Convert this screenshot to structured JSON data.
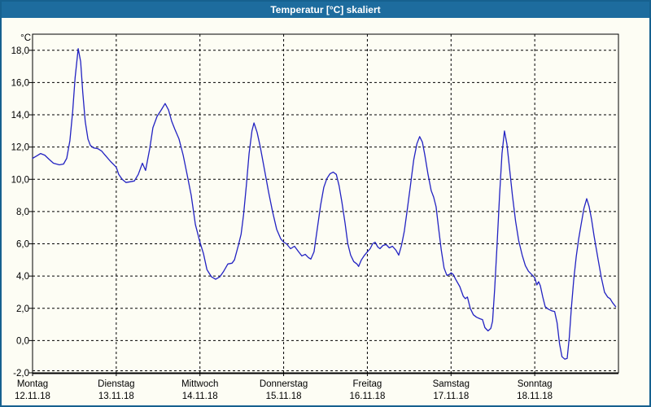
{
  "window": {
    "title": "Temperatur [°C] skaliert"
  },
  "colors": {
    "titlebar_bg": "#1d6c9e",
    "titlebar_text": "#ffffff",
    "window_border": "#16618f",
    "page_bg": "#fdfdf4",
    "plot_border": "#000000",
    "gridline": "#000000",
    "axis_text": "#000000",
    "series_line": "#2222c2"
  },
  "chart_data": {
    "type": "line",
    "title": "Temperatur [°C] skaliert",
    "ylabel": "°C",
    "grid": "dashed",
    "legend_position": "none",
    "y_axis": {
      "unit": "°C",
      "min": -2,
      "max": 19,
      "tick_step": 2,
      "ticks": [
        {
          "value": 18,
          "label": "18,0"
        },
        {
          "value": 16,
          "label": "16,0"
        },
        {
          "value": 14,
          "label": "14,0"
        },
        {
          "value": 12,
          "label": "12,0"
        },
        {
          "value": 10,
          "label": "10,0"
        },
        {
          "value": 8,
          "label": "8,0"
        },
        {
          "value": 6,
          "label": "6,0"
        },
        {
          "value": 4,
          "label": "4,0"
        },
        {
          "value": 2,
          "label": "2,0"
        },
        {
          "value": 0,
          "label": "0,0"
        },
        {
          "value": -2,
          "label": "-2,0"
        }
      ]
    },
    "x_axis": {
      "hours_min": 0,
      "hours_max": 168,
      "day_width_hours": 24,
      "days": [
        {
          "name": "Montag",
          "date": "12.11.18",
          "start_hour": 0
        },
        {
          "name": "Dienstag",
          "date": "13.11.18",
          "start_hour": 24
        },
        {
          "name": "Mittwoch",
          "date": "14.11.18",
          "start_hour": 48
        },
        {
          "name": "Donnerstag",
          "date": "15.11.18",
          "start_hour": 72
        },
        {
          "name": "Freitag",
          "date": "16.11.18",
          "start_hour": 96
        },
        {
          "name": "Samstag",
          "date": "17.11.18",
          "start_hour": 120
        },
        {
          "name": "Sonntag",
          "date": "18.11.18",
          "start_hour": 144
        }
      ]
    },
    "series": [
      {
        "name": "Temperatur [°C]",
        "color": "#2222c2",
        "points_hours_temp": [
          [
            0,
            11.3
          ],
          [
            1.2,
            11.45
          ],
          [
            2.3,
            11.6
          ],
          [
            3.5,
            11.5
          ],
          [
            4.7,
            11.25
          ],
          [
            6,
            11.0
          ],
          [
            7.7,
            10.9
          ],
          [
            8.9,
            10.95
          ],
          [
            9.8,
            11.3
          ],
          [
            10.7,
            12.4
          ],
          [
            11.5,
            14.2
          ],
          [
            12.2,
            16.3
          ],
          [
            13.1,
            18.1
          ],
          [
            13.8,
            17.3
          ],
          [
            14.4,
            15.4
          ],
          [
            15.1,
            13.6
          ],
          [
            15.9,
            12.5
          ],
          [
            16.6,
            12.1
          ],
          [
            17.5,
            11.95
          ],
          [
            18.7,
            11.9
          ],
          [
            19.8,
            11.75
          ],
          [
            21,
            11.45
          ],
          [
            22.4,
            11.1
          ],
          [
            24,
            10.75
          ],
          [
            24.7,
            10.3
          ],
          [
            25.7,
            10.0
          ],
          [
            26.8,
            9.8
          ],
          [
            28,
            9.85
          ],
          [
            29.2,
            9.9
          ],
          [
            30.3,
            10.3
          ],
          [
            31.5,
            11.0
          ],
          [
            32.4,
            10.55
          ],
          [
            33.6,
            11.9
          ],
          [
            34.5,
            13.2
          ],
          [
            35.7,
            13.9
          ],
          [
            36.9,
            14.3
          ],
          [
            38,
            14.7
          ],
          [
            39,
            14.3
          ],
          [
            39.9,
            13.6
          ],
          [
            40.8,
            13.1
          ],
          [
            42,
            12.5
          ],
          [
            43.2,
            11.5
          ],
          [
            44.3,
            10.3
          ],
          [
            45.5,
            9.0
          ],
          [
            46.7,
            7.2
          ],
          [
            48,
            6.1
          ],
          [
            49,
            5.4
          ],
          [
            50,
            4.4
          ],
          [
            51.3,
            3.95
          ],
          [
            52.5,
            3.8
          ],
          [
            53.7,
            3.95
          ],
          [
            54.8,
            4.3
          ],
          [
            56,
            4.75
          ],
          [
            57.2,
            4.8
          ],
          [
            57.9,
            5.0
          ],
          [
            59,
            5.9
          ],
          [
            59.8,
            6.6
          ],
          [
            60.5,
            7.8
          ],
          [
            61.3,
            9.6
          ],
          [
            62.1,
            11.6
          ],
          [
            62.9,
            13.0
          ],
          [
            63.5,
            13.5
          ],
          [
            64.4,
            12.9
          ],
          [
            65.3,
            12.0
          ],
          [
            66.5,
            10.6
          ],
          [
            67.7,
            9.2
          ],
          [
            68.8,
            8.0
          ],
          [
            70,
            6.9
          ],
          [
            71.2,
            6.3
          ],
          [
            72,
            6.1
          ],
          [
            72.8,
            6.0
          ],
          [
            74,
            5.7
          ],
          [
            75.1,
            5.85
          ],
          [
            76.3,
            5.5
          ],
          [
            77.2,
            5.25
          ],
          [
            78.2,
            5.35
          ],
          [
            79.1,
            5.15
          ],
          [
            79.8,
            5.05
          ],
          [
            80.7,
            5.5
          ],
          [
            81.7,
            7.0
          ],
          [
            82.6,
            8.4
          ],
          [
            83.5,
            9.5
          ],
          [
            84.4,
            10.05
          ],
          [
            85.3,
            10.35
          ],
          [
            86.2,
            10.45
          ],
          [
            87.1,
            10.3
          ],
          [
            87.9,
            9.6
          ],
          [
            88.7,
            8.6
          ],
          [
            89.6,
            7.3
          ],
          [
            90.4,
            6.0
          ],
          [
            91.2,
            5.3
          ],
          [
            92.1,
            4.9
          ],
          [
            93,
            4.75
          ],
          [
            93.5,
            4.6
          ],
          [
            94.3,
            5.0
          ],
          [
            95.2,
            5.3
          ],
          [
            96,
            5.5
          ],
          [
            96.8,
            5.7
          ],
          [
            97.5,
            6.0
          ],
          [
            98.2,
            6.1
          ],
          [
            99,
            5.8
          ],
          [
            99.6,
            5.7
          ],
          [
            100.5,
            5.9
          ],
          [
            101.4,
            5.95
          ],
          [
            102.3,
            5.75
          ],
          [
            103.2,
            5.85
          ],
          [
            104.2,
            5.6
          ],
          [
            105,
            5.3
          ],
          [
            105.8,
            5.9
          ],
          [
            106.6,
            6.8
          ],
          [
            107.5,
            8.2
          ],
          [
            108.4,
            9.7
          ],
          [
            109.3,
            11.2
          ],
          [
            110.2,
            12.2
          ],
          [
            111,
            12.65
          ],
          [
            111.8,
            12.3
          ],
          [
            112.5,
            11.5
          ],
          [
            113.4,
            10.3
          ],
          [
            114.3,
            9.3
          ],
          [
            115,
            8.9
          ],
          [
            115.7,
            8.3
          ],
          [
            116.4,
            7.0
          ],
          [
            117.2,
            5.6
          ],
          [
            118,
            4.5
          ],
          [
            118.8,
            4.05
          ],
          [
            119.5,
            4.1
          ],
          [
            120,
            4.2
          ],
          [
            120.6,
            4.1
          ],
          [
            121.3,
            3.8
          ],
          [
            122.5,
            3.35
          ],
          [
            123.5,
            2.75
          ],
          [
            124.1,
            2.6
          ],
          [
            124.7,
            2.7
          ],
          [
            125.5,
            2.0
          ],
          [
            126.4,
            1.6
          ],
          [
            127.3,
            1.45
          ],
          [
            128.3,
            1.35
          ],
          [
            129,
            1.3
          ],
          [
            129.7,
            0.8
          ],
          [
            130.6,
            0.6
          ],
          [
            131.4,
            0.75
          ],
          [
            131.9,
            1.2
          ],
          [
            132.5,
            3.2
          ],
          [
            133.2,
            6.0
          ],
          [
            133.9,
            9.0
          ],
          [
            134.6,
            11.6
          ],
          [
            135.3,
            13.0
          ],
          [
            136,
            12.2
          ],
          [
            136.7,
            10.8
          ],
          [
            137.6,
            9.0
          ],
          [
            138.5,
            7.4
          ],
          [
            139.4,
            6.2
          ],
          [
            140.4,
            5.3
          ],
          [
            141.3,
            4.65
          ],
          [
            142.2,
            4.3
          ],
          [
            143.1,
            4.1
          ],
          [
            144,
            3.9
          ],
          [
            144.6,
            3.45
          ],
          [
            145.1,
            3.65
          ],
          [
            145.6,
            3.4
          ],
          [
            146.3,
            2.7
          ],
          [
            147,
            2.1
          ],
          [
            147.9,
            1.95
          ],
          [
            148.8,
            1.85
          ],
          [
            149.7,
            1.8
          ],
          [
            150.4,
            1.1
          ],
          [
            151.1,
            -0.2
          ],
          [
            151.8,
            -1.0
          ],
          [
            152.6,
            -1.15
          ],
          [
            153.3,
            -1.1
          ],
          [
            153.9,
            0.2
          ],
          [
            154.5,
            2.0
          ],
          [
            155.2,
            3.8
          ],
          [
            155.9,
            5.2
          ],
          [
            156.6,
            6.3
          ],
          [
            157.3,
            7.2
          ],
          [
            158.1,
            8.2
          ],
          [
            158.9,
            8.8
          ],
          [
            159.6,
            8.3
          ],
          [
            160.3,
            7.5
          ],
          [
            161,
            6.5
          ],
          [
            162.2,
            5.0
          ],
          [
            163.1,
            3.9
          ],
          [
            164,
            3.0
          ],
          [
            164.9,
            2.7
          ],
          [
            165.6,
            2.6
          ],
          [
            166.3,
            2.35
          ],
          [
            167.2,
            2.1
          ]
        ]
      }
    ]
  }
}
